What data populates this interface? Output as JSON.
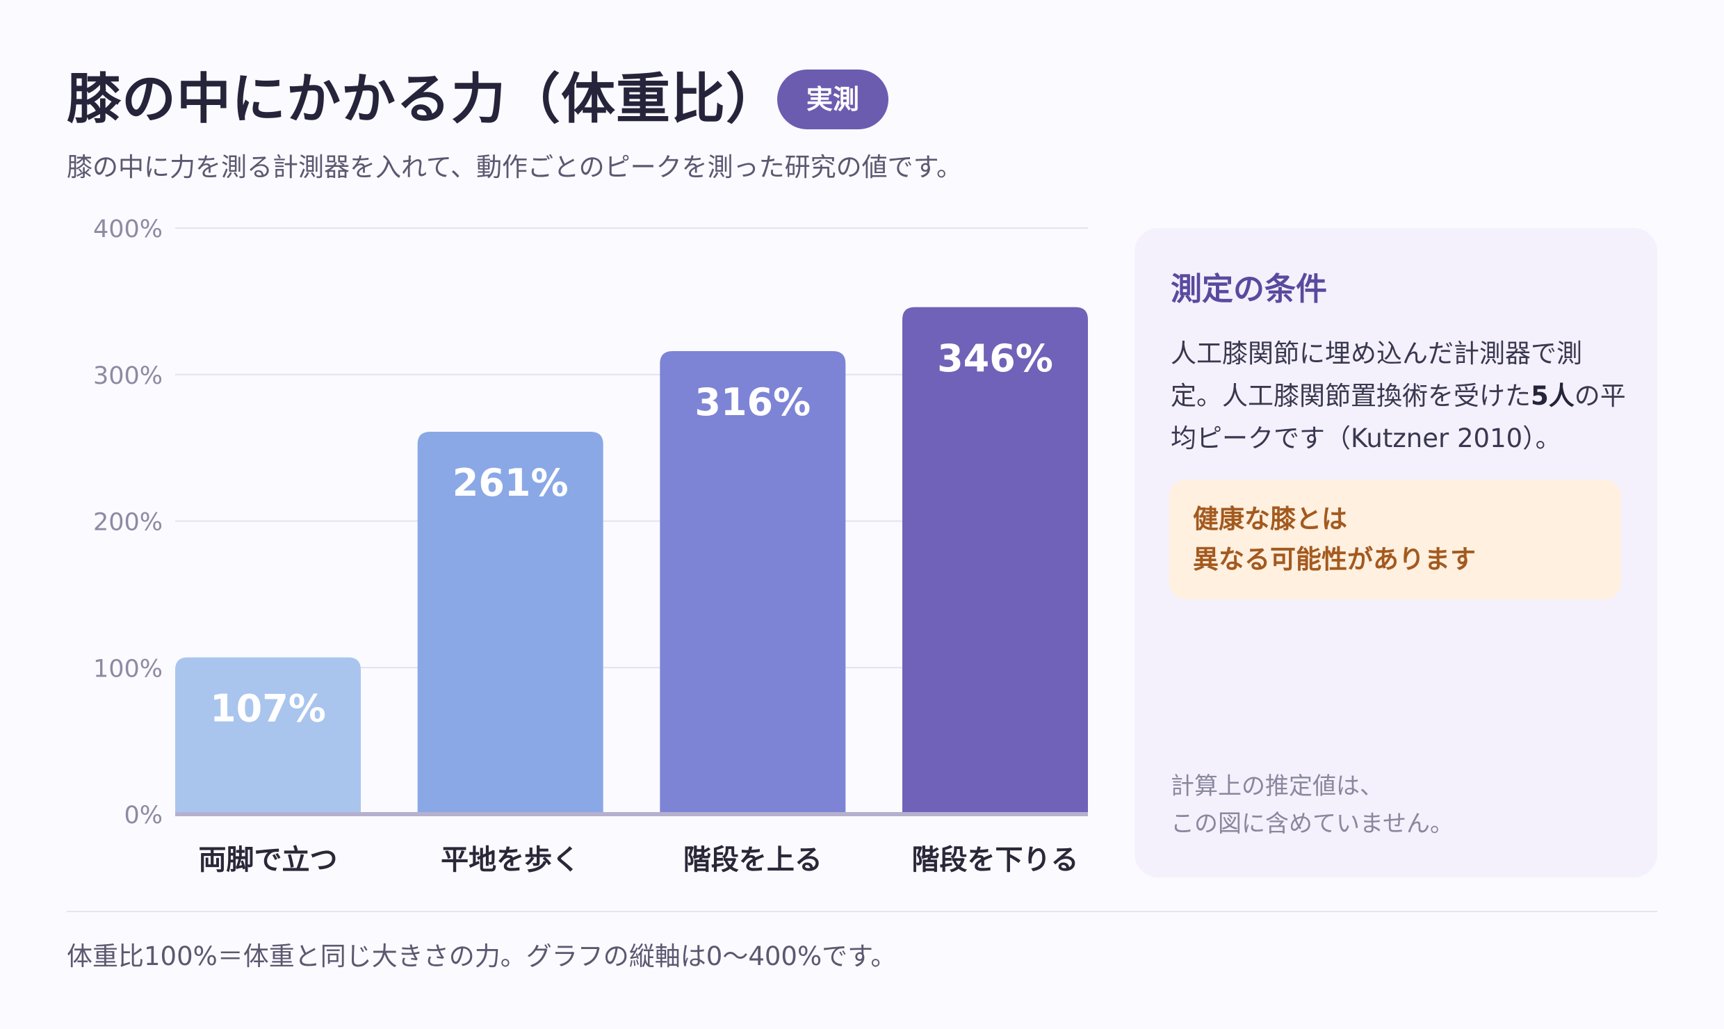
{
  "header": {
    "title": "膝の中にかかる力（体重比）",
    "badge": "実測",
    "subtitle": "膝の中に力を測る計測器を入れて、動作ごとのピークを測った研究の値です。"
  },
  "chart_data": {
    "type": "bar",
    "categories": [
      "両脚で立つ",
      "平地を歩く",
      "階段を上る",
      "階段を下りる"
    ],
    "values": [
      107,
      261,
      316,
      346
    ],
    "value_labels": [
      "107%",
      "261%",
      "316%",
      "346%"
    ],
    "colors": [
      "#a9c5ee",
      "#8aa8e6",
      "#7d84d6",
      "#6f62b8"
    ],
    "ylim": [
      0,
      400
    ],
    "yticks": [
      0,
      100,
      200,
      300,
      400
    ],
    "ytick_labels": [
      "0%",
      "100%",
      "200%",
      "300%",
      "400%"
    ],
    "grid": true,
    "title": "",
    "xlabel": "",
    "ylabel": ""
  },
  "panel": {
    "title": "測定の条件",
    "body_pre": "人工膝関節に埋め込んだ計測器で測定。人工膝関節置換術を受けた",
    "body_bold": "5人",
    "body_post": "の平均ピークです（Kutzner 2010）。",
    "warning_line1": "健康な膝とは",
    "warning_line2": "異なる可能性があります",
    "note_line1": "計算上の推定値は、",
    "note_line2": "この図に含めていません。"
  },
  "footer": {
    "note": "体重比100%＝体重と同じ大きさの力。グラフの縦軸は0〜400%です。"
  }
}
